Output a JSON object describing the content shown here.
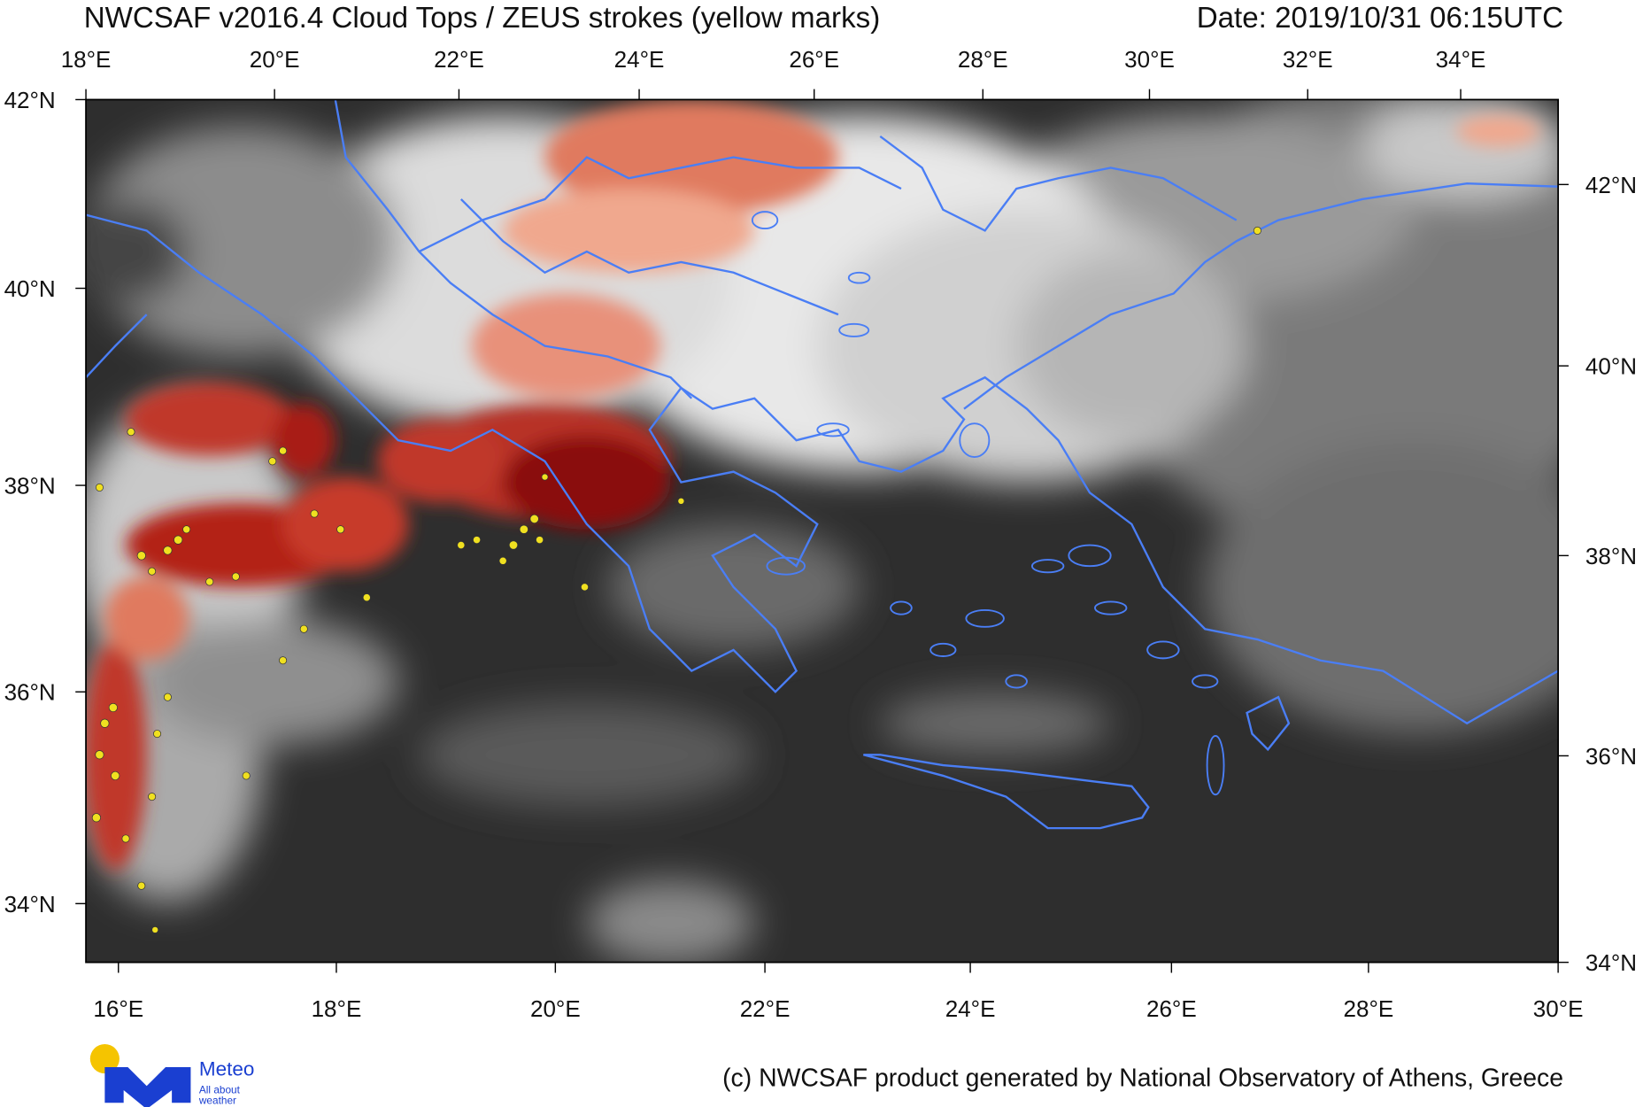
{
  "header": {
    "title": "NWCSAF v2016.4 Cloud Tops / ZEUS strokes (yellow marks)",
    "date": "Date: 2019/10/31 06:15UTC"
  },
  "axes": {
    "top": [
      "18°E",
      "20°E",
      "22°E",
      "24°E",
      "26°E",
      "28°E",
      "30°E",
      "32°E",
      "34°E"
    ],
    "bottom": [
      "16°E",
      "18°E",
      "20°E",
      "22°E",
      "24°E",
      "26°E",
      "28°E",
      "30°E"
    ],
    "left": [
      "42°N",
      "40°N",
      "38°N",
      "36°N",
      "34°N"
    ],
    "right": [
      "42°N",
      "40°N",
      "38°N",
      "36°N",
      "34°N"
    ]
  },
  "footer": {
    "credit": "(c) NWCSAF product generated by National Observatory of Athens, Greece"
  },
  "logo": {
    "name": "Meteo",
    "tagline": [
      "All about",
      "weather"
    ]
  }
}
